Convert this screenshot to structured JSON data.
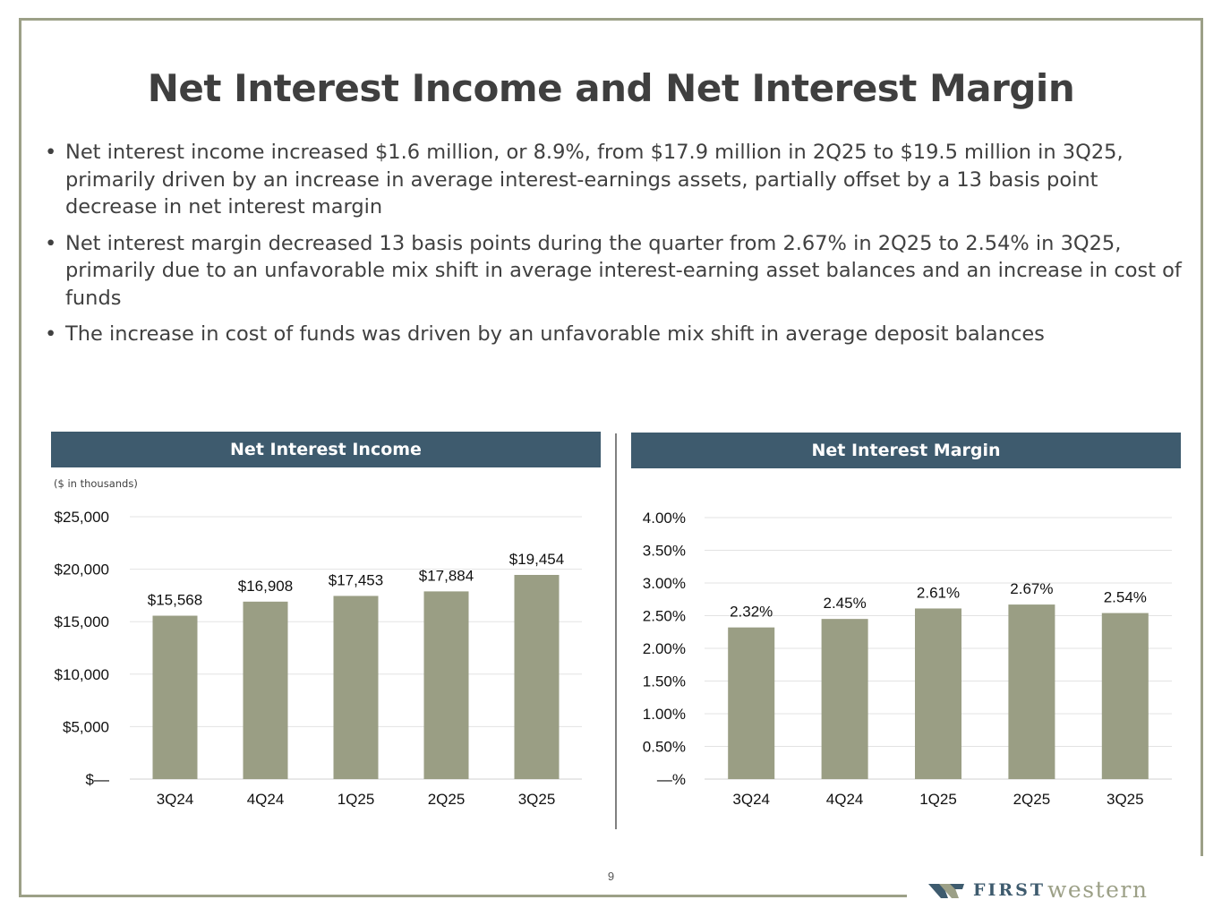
{
  "slide": {
    "title": "Net Interest Income and Net Interest Margin",
    "bullets": [
      "Net interest income increased $1.6 million, or 8.9%, from $17.9 million in 2Q25 to $19.5 million in 3Q25, primarily driven by an increase in average interest-earnings assets, partially offset by a 13 basis point decrease in net interest margin",
      "Net interest margin decreased 13 basis points during the quarter from 2.67% in 2Q25 to 2.54% in 3Q25, primarily due to an unfavorable mix shift in average interest-earning asset balances and an increase in cost of funds",
      "The increase in cost of funds was driven by an unfavorable mix shift in average deposit balances"
    ],
    "page_number": "9",
    "logo": {
      "first": "FIRST",
      "western": "western"
    }
  },
  "colors": {
    "bar": "#9a9e84",
    "header": "#3e5b6e",
    "frame": "#9ca087",
    "grid": "#e3e3e3"
  },
  "chart_data": [
    {
      "type": "bar",
      "title": "Net Interest Income",
      "subtitle": "($ in thousands)",
      "categories": [
        "3Q24",
        "4Q24",
        "1Q25",
        "2Q25",
        "3Q25"
      ],
      "values": [
        15568,
        16908,
        17453,
        17884,
        19454
      ],
      "value_labels": [
        "$15,568",
        "$16,908",
        "$17,453",
        "$17,884",
        "$19,454"
      ],
      "yticks": [
        0,
        5000,
        10000,
        15000,
        20000,
        25000
      ],
      "ytick_labels": [
        "$—",
        "$5,000",
        "$10,000",
        "$15,000",
        "$20,000",
        "$25,000"
      ],
      "ylim": [
        0,
        25000
      ],
      "grid": true
    },
    {
      "type": "bar",
      "title": "Net Interest Margin",
      "categories": [
        "3Q24",
        "4Q24",
        "1Q25",
        "2Q25",
        "3Q25"
      ],
      "values": [
        2.32,
        2.45,
        2.61,
        2.67,
        2.54
      ],
      "value_labels": [
        "2.32%",
        "2.45%",
        "2.61%",
        "2.67%",
        "2.54%"
      ],
      "yticks": [
        0,
        0.5,
        1.0,
        1.5,
        2.0,
        2.5,
        3.0,
        3.5,
        4.0
      ],
      "ytick_labels": [
        "—%",
        "0.50%",
        "1.00%",
        "1.50%",
        "2.00%",
        "2.50%",
        "3.00%",
        "3.50%",
        "4.00%"
      ],
      "ylim": [
        0,
        4.0
      ],
      "grid": true
    }
  ]
}
